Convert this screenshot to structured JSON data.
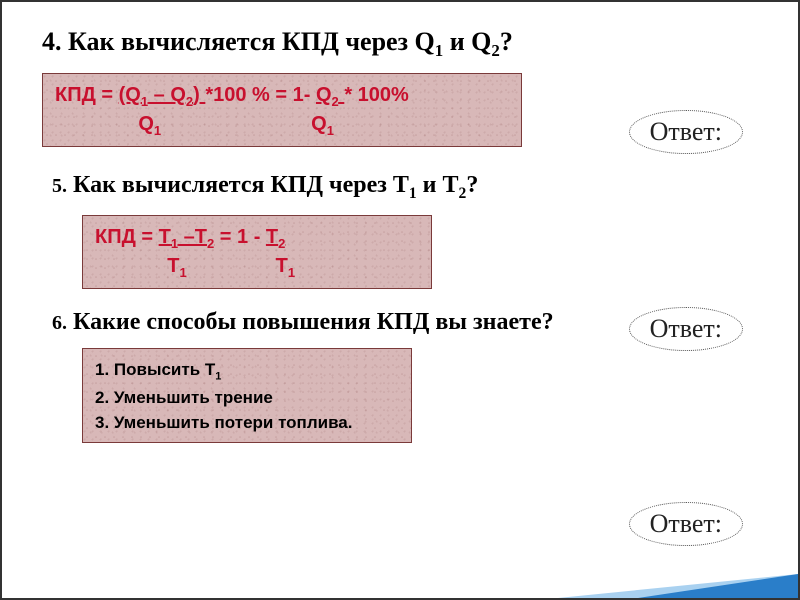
{
  "colors": {
    "box_bg": "#d8b8b8",
    "box_border": "#7a3a3a",
    "formula_text": "#c8102e",
    "heading_text": "#000000",
    "answer_text": "#222222",
    "accent_dark": "#2a7ec9",
    "accent_light": "#a9d1f0",
    "page_bg": "#ffffff"
  },
  "q4": {
    "number": "4.",
    "text_prefix": " Как вычисляется КПД через Q",
    "sub1": "1",
    "text_mid": " и Q",
    "sub2": "2",
    "text_suffix": "?",
    "formula_line1_pre": "КПД = ",
    "formula_line1_u1": "(Q",
    "formula_line1_u1_sub": "1",
    "formula_line1_u1_mid": " – Q",
    "formula_line1_u1_sub2": "2",
    "formula_line1_u1_end": ") ",
    "formula_line1_mid": "*100 % = 1- ",
    "formula_line1_u2": "Q",
    "formula_line1_u2_sub": "2",
    "formula_line1_u2_pad": "  ",
    "formula_line1_end": " * 100%",
    "formula_line2_pad1": "               Q",
    "formula_line2_sub1": "1",
    "formula_line2_pad2": "                           Q",
    "formula_line2_sub2": "1"
  },
  "q5": {
    "number": "5.",
    "text_prefix": " Как вычисляется КПД через Т",
    "sub1": "1",
    "text_mid": " и Т",
    "sub2": "2",
    "text_suffix": "?",
    "formula_line1_pre": "КПД = ",
    "formula_line1_u1": "Т",
    "formula_line1_u1_sub": "1",
    "formula_line1_u1_mid": " –Т",
    "formula_line1_u1_sub2": "2",
    "formula_line1_mid": " = 1 - ",
    "formula_line1_u2": " Т",
    "formula_line1_u2_sub": "2",
    "formula_line1_u2_pad": "  ",
    "formula_line2_pad1": "             Т",
    "formula_line2_sub1": "1",
    "formula_line2_pad2": "                Т",
    "formula_line2_sub2": "1"
  },
  "q6": {
    "number": "6.",
    "text": " Какие способы повышения КПД вы знаете?",
    "item1_num": "1.",
    "item1_text": "  Повысить Т",
    "item1_sub": "1",
    "item2_num": "2.",
    "item2_text": "  Уменьшить трение",
    "item3_num": "3.",
    "item3_text": "  Уменьшить потери топлива."
  },
  "answer_label": "Ответ:"
}
